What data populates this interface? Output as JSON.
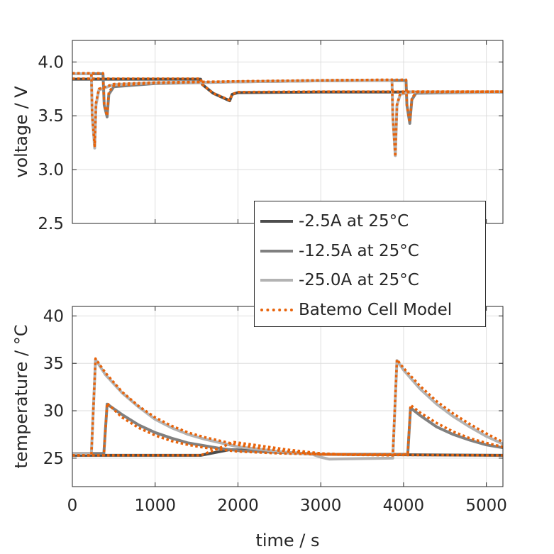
{
  "chart_data": [
    {
      "type": "line",
      "ylabel": "voltage / V",
      "xlabel": "",
      "xlim": [
        0,
        5200
      ],
      "ylim": [
        2.5,
        4.2
      ],
      "xticks": [
        0,
        1000,
        2000,
        3000,
        4000,
        5000
      ],
      "yticks": [
        2.5,
        3.0,
        3.5,
        4.0
      ],
      "ytick_labels": [
        "2.5",
        "3.0",
        "3.5",
        "4.0"
      ],
      "grid": true,
      "series": [
        {
          "name": "-2.5A at 25°C",
          "color": "#4d4d4d",
          "style": "solid",
          "points": [
            [
              0,
              3.84
            ],
            [
              1550,
              3.84
            ],
            [
              1570,
              3.79
            ],
            [
              1700,
              3.71
            ],
            [
              1900,
              3.64
            ],
            [
              1930,
              3.7
            ],
            [
              2000,
              3.715
            ],
            [
              3000,
              3.72
            ],
            [
              5200,
              3.72
            ]
          ]
        },
        {
          "name": "-12.5A at 25°C",
          "color": "#808080",
          "style": "solid",
          "points": [
            [
              0,
              3.89
            ],
            [
              370,
              3.89
            ],
            [
              385,
              3.6
            ],
            [
              420,
              3.49
            ],
            [
              440,
              3.7
            ],
            [
              500,
              3.77
            ],
            [
              1000,
              3.8
            ],
            [
              2000,
              3.815
            ],
            [
              3000,
              3.825
            ],
            [
              4030,
              3.83
            ],
            [
              4040,
              3.6
            ],
            [
              4075,
              3.43
            ],
            [
              4100,
              3.65
            ],
            [
              4150,
              3.71
            ],
            [
              5200,
              3.72
            ]
          ]
        },
        {
          "name": "-25.0A at 25°C",
          "color": "#b3b3b3",
          "style": "solid",
          "points": [
            [
              0,
              3.89
            ],
            [
              230,
              3.89
            ],
            [
              240,
              3.5
            ],
            [
              270,
              3.2
            ],
            [
              285,
              3.6
            ],
            [
              320,
              3.74
            ],
            [
              500,
              3.79
            ],
            [
              1000,
              3.805
            ],
            [
              2000,
              3.815
            ],
            [
              3000,
              3.825
            ],
            [
              3860,
              3.83
            ],
            [
              3870,
              3.5
            ],
            [
              3900,
              3.13
            ],
            [
              3920,
              3.6
            ],
            [
              3960,
              3.7
            ],
            [
              4100,
              3.72
            ],
            [
              5200,
              3.72
            ]
          ]
        },
        {
          "name": "Batemo Cell Model",
          "color": "#e8630a",
          "style": "dotted",
          "points": [
            [
              0,
              3.845
            ],
            [
              1550,
              3.845
            ],
            [
              1570,
              3.79
            ],
            [
              1700,
              3.71
            ],
            [
              1900,
              3.645
            ],
            [
              1930,
              3.7
            ],
            [
              2000,
              3.72
            ],
            [
              3000,
              3.725
            ],
            [
              5200,
              3.725
            ]
          ]
        },
        {
          "name": "Batemo Cell Model",
          "color": "#e8630a",
          "style": "dotted",
          "points": [
            [
              0,
              3.895
            ],
            [
              370,
              3.895
            ],
            [
              385,
              3.6
            ],
            [
              420,
              3.5
            ],
            [
              440,
              3.72
            ],
            [
              500,
              3.78
            ],
            [
              1000,
              3.805
            ],
            [
              2000,
              3.82
            ],
            [
              3000,
              3.83
            ],
            [
              4030,
              3.835
            ],
            [
              4040,
              3.6
            ],
            [
              4075,
              3.44
            ],
            [
              4100,
              3.66
            ],
            [
              4150,
              3.72
            ],
            [
              5200,
              3.725
            ]
          ]
        },
        {
          "name": "Batemo Cell Model",
          "color": "#e8630a",
          "style": "dotted",
          "points": [
            [
              0,
              3.895
            ],
            [
              230,
              3.895
            ],
            [
              240,
              3.5
            ],
            [
              270,
              3.22
            ],
            [
              285,
              3.62
            ],
            [
              320,
              3.75
            ],
            [
              500,
              3.795
            ],
            [
              1000,
              3.81
            ],
            [
              2000,
              3.82
            ],
            [
              3000,
              3.83
            ],
            [
              3860,
              3.835
            ],
            [
              3870,
              3.5
            ],
            [
              3900,
              3.12
            ],
            [
              3920,
              3.6
            ],
            [
              3960,
              3.71
            ],
            [
              4100,
              3.725
            ],
            [
              5200,
              3.725
            ]
          ]
        }
      ]
    },
    {
      "type": "line",
      "ylabel": "temperature / °C",
      "xlabel": "time / s",
      "xlim": [
        0,
        5200
      ],
      "ylim": [
        22,
        41
      ],
      "xticks": [
        0,
        1000,
        2000,
        3000,
        4000,
        5000
      ],
      "xtick_labels": [
        "0",
        "1000",
        "2000",
        "3000",
        "4000",
        "5000"
      ],
      "yticks": [
        25,
        30,
        35,
        40
      ],
      "ytick_labels": [
        "25",
        "30",
        "35",
        "40"
      ],
      "grid": true,
      "series": [
        {
          "name": "-2.5A at 25°C",
          "color": "#4d4d4d",
          "style": "solid",
          "points": [
            [
              0,
              25.3
            ],
            [
              1550,
              25.3
            ],
            [
              1900,
              25.9
            ],
            [
              2200,
              25.8
            ],
            [
              2600,
              25.6
            ],
            [
              3000,
              25.4
            ],
            [
              5200,
              25.3
            ]
          ]
        },
        {
          "name": "-12.5A at 25°C",
          "color": "#808080",
          "style": "solid",
          "points": [
            [
              0,
              25.5
            ],
            [
              380,
              25.5
            ],
            [
              420,
              30.7
            ],
            [
              600,
              29.6
            ],
            [
              800,
              28.5
            ],
            [
              1000,
              27.7
            ],
            [
              1200,
              27.1
            ],
            [
              1400,
              26.6
            ],
            [
              1600,
              26.3
            ],
            [
              1800,
              26.0
            ],
            [
              2000,
              25.8
            ],
            [
              2500,
              25.6
            ],
            [
              3000,
              25.4
            ],
            [
              4050,
              25.4
            ],
            [
              4085,
              30.3
            ],
            [
              4200,
              29.5
            ],
            [
              4400,
              28.3
            ],
            [
              4600,
              27.5
            ],
            [
              4800,
              26.9
            ],
            [
              5000,
              26.4
            ],
            [
              5200,
              26.1
            ]
          ]
        },
        {
          "name": "-25.0A at 25°C",
          "color": "#b3b3b3",
          "style": "solid",
          "points": [
            [
              0,
              25.5
            ],
            [
              230,
              25.5
            ],
            [
              280,
              35.4
            ],
            [
              400,
              33.8
            ],
            [
              600,
              31.9
            ],
            [
              800,
              30.4
            ],
            [
              1000,
              29.1
            ],
            [
              1200,
              28.2
            ],
            [
              1400,
              27.5
            ],
            [
              1600,
              27.0
            ],
            [
              1800,
              26.6
            ],
            [
              2000,
              26.2
            ],
            [
              2300,
              25.9
            ],
            [
              2600,
              25.6
            ],
            [
              2900,
              25.4
            ],
            [
              3000,
              25.1
            ],
            [
              3100,
              24.9
            ],
            [
              3850,
              25.0
            ],
            [
              3870,
              25.0
            ],
            [
              3920,
              35.3
            ],
            [
              4000,
              34.3
            ],
            [
              4200,
              32.3
            ],
            [
              4400,
              30.7
            ],
            [
              4600,
              29.4
            ],
            [
              4800,
              28.3
            ],
            [
              5000,
              27.3
            ],
            [
              5200,
              26.5
            ]
          ]
        },
        {
          "name": "Batemo Cell Model",
          "color": "#e8630a",
          "style": "dotted",
          "points": [
            [
              0,
              25.3
            ],
            [
              1550,
              25.3
            ],
            [
              1700,
              25.8
            ],
            [
              1950,
              26.7
            ],
            [
              2200,
              26.4
            ],
            [
              2600,
              25.9
            ],
            [
              3000,
              25.5
            ],
            [
              3400,
              25.35
            ],
            [
              5200,
              25.3
            ]
          ]
        },
        {
          "name": "Batemo Cell Model",
          "color": "#e8630a",
          "style": "dotted",
          "points": [
            [
              0,
              25.3
            ],
            [
              380,
              25.3
            ],
            [
              420,
              30.8
            ],
            [
              600,
              29.3
            ],
            [
              800,
              28.2
            ],
            [
              1000,
              27.4
            ],
            [
              1200,
              26.8
            ],
            [
              1400,
              26.4
            ],
            [
              1600,
              26.1
            ],
            [
              1800,
              25.9
            ],
            [
              2000,
              25.7
            ],
            [
              2500,
              25.5
            ],
            [
              3000,
              25.4
            ],
            [
              4050,
              25.4
            ],
            [
              4085,
              30.6
            ],
            [
              4200,
              29.8
            ],
            [
              4400,
              28.7
            ],
            [
              4600,
              27.8
            ],
            [
              4800,
              27.1
            ],
            [
              5000,
              26.6
            ],
            [
              5200,
              26.2
            ]
          ]
        },
        {
          "name": "Batemo Cell Model",
          "color": "#e8630a",
          "style": "dotted",
          "points": [
            [
              0,
              25.3
            ],
            [
              230,
              25.3
            ],
            [
              280,
              35.5
            ],
            [
              400,
              34.0
            ],
            [
              600,
              32.0
            ],
            [
              800,
              30.5
            ],
            [
              1000,
              29.3
            ],
            [
              1200,
              28.4
            ],
            [
              1400,
              27.7
            ],
            [
              1600,
              27.2
            ],
            [
              1800,
              26.8
            ],
            [
              2000,
              26.4
            ],
            [
              2300,
              26.0
            ],
            [
              2600,
              25.7
            ],
            [
              3000,
              25.4
            ],
            [
              3870,
              25.3
            ],
            [
              3920,
              35.4
            ],
            [
              4000,
              34.5
            ],
            [
              4200,
              32.6
            ],
            [
              4400,
              31.0
            ],
            [
              4600,
              29.7
            ],
            [
              4800,
              28.6
            ],
            [
              5000,
              27.6
            ],
            [
              5200,
              26.7
            ]
          ]
        }
      ]
    }
  ],
  "legend": {
    "placement": "overlapping both panels, right",
    "entries": [
      {
        "label": "-2.5A at 25°C",
        "color": "#4d4d4d",
        "style": "solid"
      },
      {
        "label": "-12.5A at 25°C",
        "color": "#808080",
        "style": "solid"
      },
      {
        "label": "-25.0A at 25°C",
        "color": "#b3b3b3",
        "style": "solid"
      },
      {
        "label": "Batemo Cell Model",
        "color": "#e8630a",
        "style": "dotted"
      }
    ]
  }
}
